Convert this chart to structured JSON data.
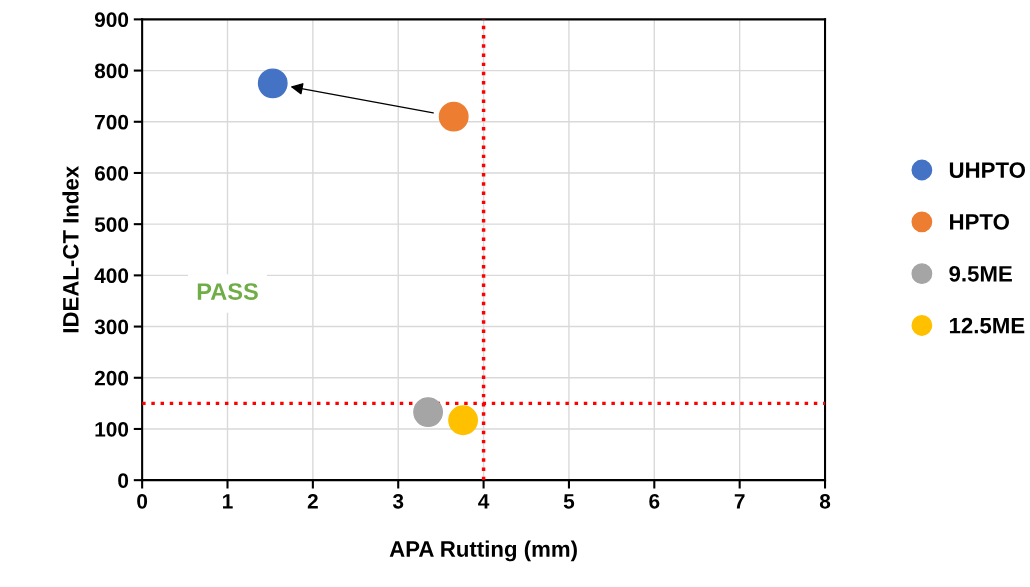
{
  "chart_data": {
    "type": "scatter",
    "xlabel": "APA Rutting (mm)",
    "ylabel": "IDEAL-CT Index",
    "xlim": [
      0,
      8
    ],
    "ylim": [
      0,
      900
    ],
    "xticks": [
      0,
      1,
      2,
      3,
      4,
      5,
      6,
      7,
      8
    ],
    "yticks": [
      0,
      100,
      200,
      300,
      400,
      500,
      600,
      700,
      800,
      900
    ],
    "grid": true,
    "legend": "right",
    "marker": "circle",
    "series": [
      {
        "name": "UHPTO",
        "color": "#4472c4",
        "x": [
          1.53
        ],
        "values": [
          775
        ]
      },
      {
        "name": "HPTO",
        "color": "#ed7d31",
        "x": [
          3.65
        ],
        "values": [
          710
        ]
      },
      {
        "name": "9.5ME",
        "color": "#a5a5a5",
        "x": [
          3.35
        ],
        "values": [
          133
        ]
      },
      {
        "name": "12.5ME",
        "color": "#ffc000",
        "x": [
          3.76
        ],
        "values": [
          117
        ]
      }
    ],
    "ref_lines": [
      {
        "axis": "x",
        "value": 4,
        "color": "#ff0000",
        "line_style": "dotted"
      },
      {
        "axis": "y",
        "value": 150,
        "color": "#ff0000",
        "line_style": "dotted"
      }
    ],
    "annotations": [
      "PASS"
    ]
  }
}
